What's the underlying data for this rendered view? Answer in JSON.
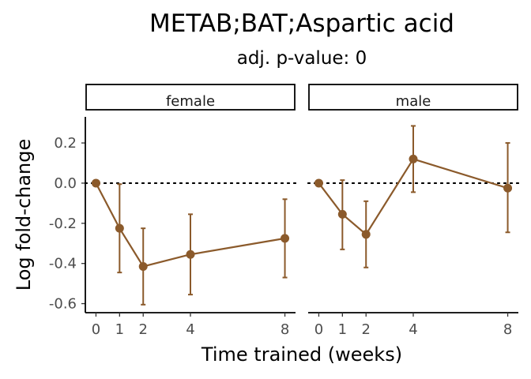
{
  "chart_data": {
    "type": "line",
    "title": "METAB;BAT;Aspartic acid",
    "subtitle": "adj. p-value: 0",
    "xlabel": "Time trained (weeks)",
    "ylabel": "Log fold-change",
    "x_ticks": [
      0,
      1,
      2,
      4,
      8
    ],
    "y_ticks": [
      0.2,
      0.0,
      -0.2,
      -0.4,
      -0.6
    ],
    "y_tick_labels": [
      "0.2",
      "0.0",
      "-0.2",
      "-0.4",
      "-0.6"
    ],
    "ylim": [
      -0.645,
      0.33
    ],
    "xlim": [
      -0.45,
      8.45
    ],
    "reference_line": 0,
    "grid": false,
    "color": "#8B5A2B",
    "panels": [
      {
        "label": "female",
        "points": [
          {
            "x": 0,
            "y": 0.0,
            "lower": 0.0,
            "upper": 0.0
          },
          {
            "x": 1,
            "y": -0.225,
            "lower": -0.445,
            "upper": -0.005
          },
          {
            "x": 2,
            "y": -0.415,
            "lower": -0.605,
            "upper": -0.225
          },
          {
            "x": 4,
            "y": -0.355,
            "lower": -0.555,
            "upper": -0.155
          },
          {
            "x": 8,
            "y": -0.275,
            "lower": -0.47,
            "upper": -0.08
          }
        ]
      },
      {
        "label": "male",
        "points": [
          {
            "x": 0,
            "y": 0.0,
            "lower": 0.0,
            "upper": 0.0
          },
          {
            "x": 1,
            "y": -0.155,
            "lower": -0.33,
            "upper": 0.015
          },
          {
            "x": 2,
            "y": -0.255,
            "lower": -0.42,
            "upper": -0.09
          },
          {
            "x": 4,
            "y": 0.12,
            "lower": -0.045,
            "upper": 0.285
          },
          {
            "x": 8,
            "y": -0.025,
            "lower": -0.245,
            "upper": 0.2
          }
        ]
      }
    ]
  }
}
